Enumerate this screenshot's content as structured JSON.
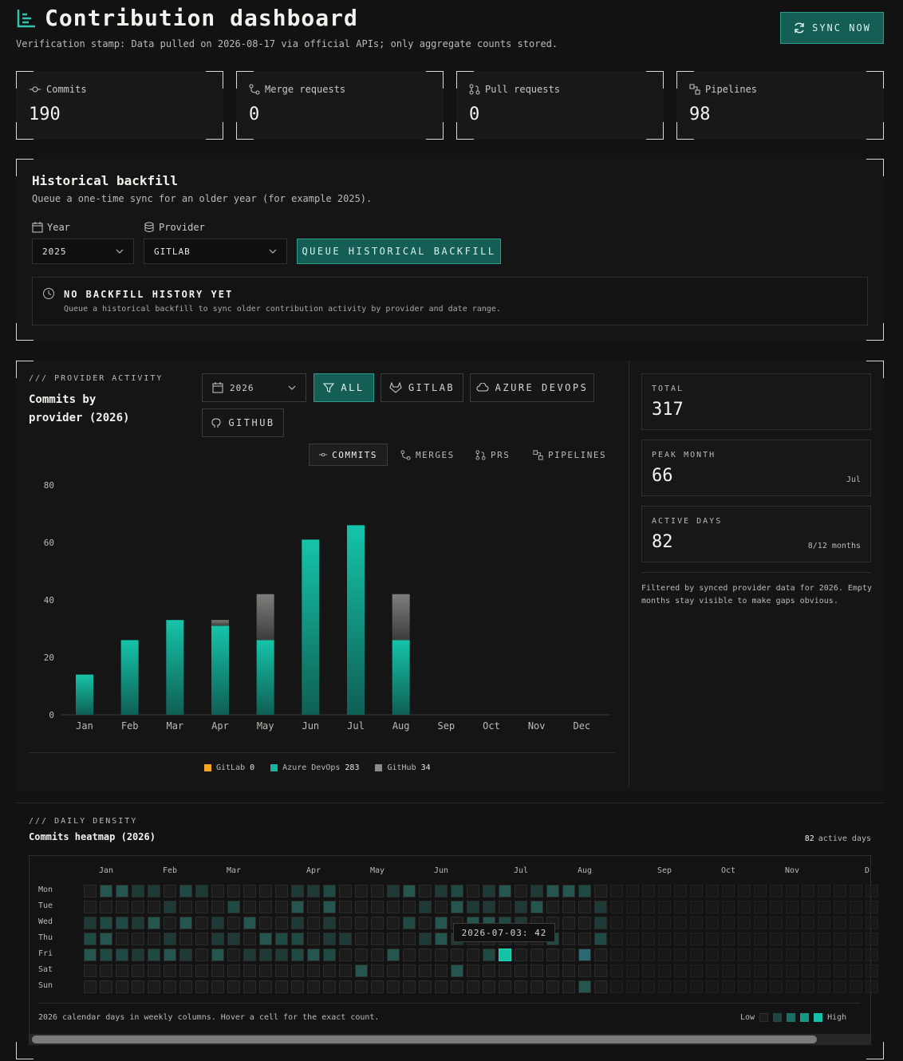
{
  "header": {
    "title": "Contribution dashboard",
    "subtitle": "Verification stamp: Data pulled on 2026-08-17 via official APIs; only aggregate counts stored.",
    "sync_label": "SYNC NOW"
  },
  "stats": [
    {
      "label": "Commits",
      "value": "190",
      "icon": "commit-icon"
    },
    {
      "label": "Merge requests",
      "value": "0",
      "icon": "merge-icon"
    },
    {
      "label": "Pull requests",
      "value": "0",
      "icon": "pull-request-icon"
    },
    {
      "label": "Pipelines",
      "value": "98",
      "icon": "pipeline-icon"
    }
  ],
  "backfill": {
    "title": "Historical backfill",
    "subtitle": "Queue a one-time sync for an older year (for example 2025).",
    "year_label": "Year",
    "year_value": "2025",
    "provider_label": "Provider",
    "provider_value": "GITLAB",
    "queue_label": "QUEUE HISTORICAL BACKFILL",
    "empty_title": "NO BACKFILL HISTORY YET",
    "empty_sub": "Queue a historical backfill to sync older contribution activity by provider and date range."
  },
  "provider_activity": {
    "kicker": "/// PROVIDER ACTIVITY",
    "title_line1": "Commits by",
    "title_line2": "provider (2026)",
    "year_value": "2026",
    "filters": [
      "ALL",
      "GITLAB",
      "AZURE DEVOPS",
      "GITHUB"
    ],
    "metric_tabs": [
      "COMMITS",
      "MERGES",
      "PRS",
      "PIPELINES"
    ],
    "legend": [
      {
        "name": "GitLab",
        "count": "0",
        "color": "#f5a623"
      },
      {
        "name": "Azure DevOps",
        "count": "283",
        "color": "#14b8a0"
      },
      {
        "name": "GitHub",
        "count": "34",
        "color": "#8a8c89"
      }
    ]
  },
  "summary": {
    "total_label": "TOTAL",
    "total_value": "317",
    "peak_label": "PEAK MONTH",
    "peak_value": "66",
    "peak_month": "Jul",
    "active_label": "ACTIVE DAYS",
    "active_value": "82",
    "active_sub": "8/12 months",
    "note": "Filtered by synced provider data for 2026. Empty months stay visible to make gaps obvious."
  },
  "chart_data": {
    "type": "bar",
    "stacked": true,
    "categories": [
      "Jan",
      "Feb",
      "Mar",
      "Apr",
      "May",
      "Jun",
      "Jul",
      "Aug",
      "Sep",
      "Oct",
      "Nov",
      "Dec"
    ],
    "series": [
      {
        "name": "Azure DevOps",
        "values": [
          14,
          26,
          33,
          31,
          26,
          61,
          66,
          26,
          0,
          0,
          0,
          0
        ],
        "color": "#14b8a0"
      },
      {
        "name": "GitHub",
        "values": [
          0,
          0,
          0,
          2,
          16,
          0,
          0,
          16,
          0,
          0,
          0,
          0
        ],
        "color": "#8a8c89"
      }
    ],
    "yticks": [
      0,
      20,
      40,
      60,
      80
    ],
    "ylim": [
      0,
      80
    ]
  },
  "heatmap": {
    "kicker": "/// DAILY DENSITY",
    "title": "Commits heatmap (2026)",
    "active_count": "82",
    "active_suffix": "active days",
    "months": [
      "Jan",
      "Feb",
      "Mar",
      "Apr",
      "May",
      "Jun",
      "Jul",
      "Aug",
      "Sep",
      "Oct",
      "Nov",
      "D"
    ],
    "days": [
      "Mon",
      "Tue",
      "Wed",
      "Thu",
      "Fri",
      "Sat",
      "Sun"
    ],
    "tooltip": "2026-07-03: 42",
    "footer": "2026 calendar days in weekly columns. Hover a cell for the exact count.",
    "low_label": "Low",
    "high_label": "High"
  }
}
